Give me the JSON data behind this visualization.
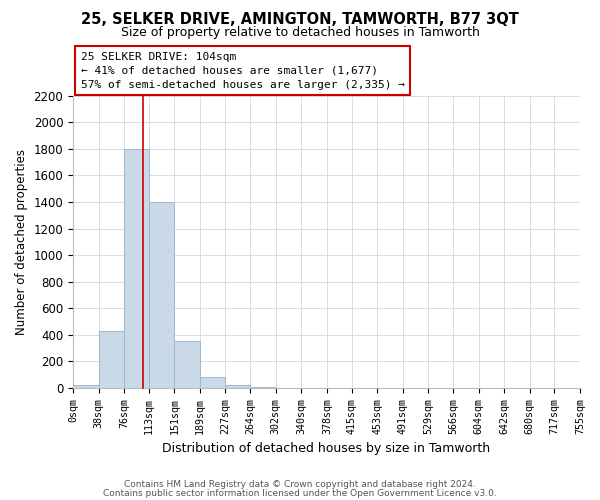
{
  "title": "25, SELKER DRIVE, AMINGTON, TAMWORTH, B77 3QT",
  "subtitle": "Size of property relative to detached houses in Tamworth",
  "xlabel": "Distribution of detached houses by size in Tamworth",
  "ylabel": "Number of detached properties",
  "bar_color": "#c9d9e8",
  "bar_edgecolor": "#a0b8cc",
  "bin_edges": [
    0,
    38,
    76,
    113,
    151,
    189,
    227,
    264,
    302,
    340,
    378,
    415,
    453,
    491,
    529,
    566,
    604,
    642,
    680,
    717,
    755
  ],
  "bar_heights": [
    20,
    430,
    1800,
    1400,
    350,
    80,
    20,
    5,
    0,
    0,
    0,
    0,
    0,
    0,
    0,
    0,
    0,
    0,
    0,
    0
  ],
  "property_size": 104,
  "vline_color": "#cc0000",
  "ylim": [
    0,
    2200
  ],
  "yticks": [
    0,
    200,
    400,
    600,
    800,
    1000,
    1200,
    1400,
    1600,
    1800,
    2000,
    2200
  ],
  "annotation_title": "25 SELKER DRIVE: 104sqm",
  "annotation_line1": "← 41% of detached houses are smaller (1,677)",
  "annotation_line2": "57% of semi-detached houses are larger (2,335) →",
  "annotation_box_color": "#ffffff",
  "annotation_box_edgecolor": "#cc0000",
  "footer1": "Contains HM Land Registry data © Crown copyright and database right 2024.",
  "footer2": "Contains public sector information licensed under the Open Government Licence v3.0.",
  "background_color": "#ffffff",
  "grid_color": "#d4dce8",
  "xtick_labels": [
    "0sqm",
    "38sqm",
    "76sqm",
    "113sqm",
    "151sqm",
    "189sqm",
    "227sqm",
    "264sqm",
    "302sqm",
    "340sqm",
    "378sqm",
    "415sqm",
    "453sqm",
    "491sqm",
    "529sqm",
    "566sqm",
    "604sqm",
    "642sqm",
    "680sqm",
    "717sqm",
    "755sqm"
  ]
}
